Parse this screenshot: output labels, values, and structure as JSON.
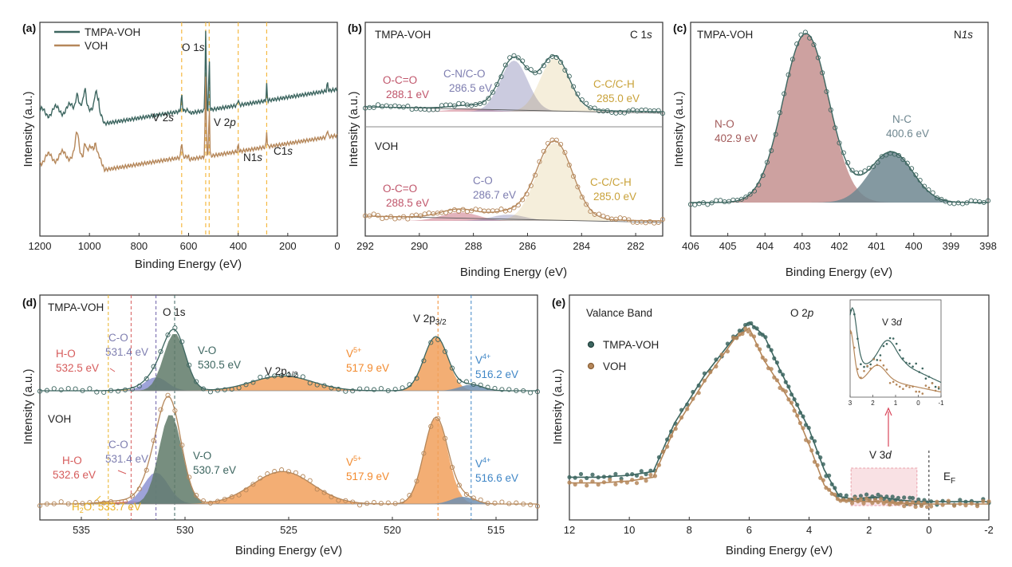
{
  "colors": {
    "tmpa": "#3d6660",
    "voh": "#b5875a",
    "vline": "#f5b942",
    "oco_txt": "#c0566b",
    "cn_txt": "#7e7eb0",
    "cc_txt": "#c9a23a",
    "no_fill": "#c4908f",
    "nc_fill": "#6f8790",
    "v5_fill": "#f1a05c",
    "v4_fill": "#6e8fb2",
    "v4_txt": "#3f86c6",
    "vo_fill": "#5f7a68",
    "c_o_fill": "#8d93d2",
    "ho_txt": "#d65b5b",
    "h2o_txt": "#e9b226",
    "v5_txt": "#f28a2e",
    "box_fill": "#f7d4d8"
  },
  "chart_data": [
    {
      "id": "a",
      "type": "line",
      "panel_label": "(a)",
      "xlabel": "Binding Energy (eV)",
      "ylabel": "Intensity (a.u.)",
      "xlim": [
        1200,
        0
      ],
      "xticks": [
        1200,
        1000,
        800,
        600,
        400,
        200,
        0
      ],
      "legend_position": "top-left",
      "series": [
        {
          "name": "TMPA-VOH",
          "key": "tmpa"
        },
        {
          "name": "VOH",
          "key": "voh"
        }
      ],
      "annotations": [
        {
          "id": "v2s",
          "text": "V 2",
          "italic": "s",
          "x": 628
        },
        {
          "id": "o1s",
          "text": "O 1",
          "italic": "s",
          "x": 531
        },
        {
          "id": "v2p",
          "text": "V 2",
          "italic": "p",
          "x": 517
        },
        {
          "id": "n1s",
          "text": "N1",
          "italic": "s",
          "x": 400
        },
        {
          "id": "c1s",
          "text": "C1",
          "italic": "s",
          "x": 285
        }
      ],
      "reference_lines": [
        628,
        531,
        517,
        400,
        285
      ]
    },
    {
      "id": "b",
      "type": "line",
      "panel_label": "(b)",
      "xlabel": "Binding Energy (eV)",
      "ylabel": "Intensity (a.u.)",
      "xlim": [
        292,
        281
      ],
      "xticks": [
        292,
        290,
        288,
        286,
        284,
        282
      ],
      "region_label": "C 1",
      "region_italic": "s",
      "subpanels": [
        {
          "name": "TMPA-VOH",
          "peaks": [
            {
              "label": "O-C=O",
              "value": "288.1 eV",
              "center": 288.1,
              "height": 0.05,
              "fwhm": 1.6
            },
            {
              "label": "C-N/C-O",
              "value": "286.5 eV",
              "center": 286.5,
              "height": 0.78,
              "fwhm": 1.2
            },
            {
              "label": "C-C/C-H",
              "value": "285.0 eV",
              "center": 285.0,
              "height": 0.82,
              "fwhm": 1.25
            }
          ]
        },
        {
          "name": "VOH",
          "peaks": [
            {
              "label": "O-C=O",
              "value": "288.5 eV",
              "center": 288.5,
              "height": 0.11,
              "fwhm": 1.6
            },
            {
              "label": "C-O",
              "value": "286.7 eV",
              "center": 286.7,
              "height": 0.08,
              "fwhm": 1.5
            },
            {
              "label": "C-C/C-H",
              "value": "285.0 eV",
              "center": 285.0,
              "height": 1.0,
              "fwhm": 1.55
            }
          ]
        }
      ]
    },
    {
      "id": "c",
      "type": "line",
      "panel_label": "(c)",
      "name": "TMPA-VOH",
      "region_label": "N",
      "region_italic": "1s",
      "xlabel": "Binding Energy (eV)",
      "ylabel": "Intensity (a.u.)",
      "xlim": [
        406,
        398
      ],
      "xticks": [
        406,
        405,
        404,
        403,
        402,
        401,
        400,
        399,
        398
      ],
      "peaks": [
        {
          "label": "N-O",
          "value": "402.9 eV",
          "center": 402.9,
          "height": 1.0,
          "fwhm": 1.45
        },
        {
          "label": "N-C",
          "value": "400.6 eV",
          "center": 400.6,
          "height": 0.3,
          "fwhm": 1.35
        }
      ]
    },
    {
      "id": "d",
      "type": "line",
      "panel_label": "(d)",
      "xlabel": "Binding Energy (eV)",
      "ylabel": "Intensity (a.u.)",
      "xlim": [
        537,
        513
      ],
      "xticks": [
        535,
        530,
        525,
        520,
        515
      ],
      "headers": {
        "o1s": "O 1s",
        "v2p12": "V 2p",
        "v2p12_sub": "1/2",
        "v2p32": "V 2p",
        "v2p32_sub": "3/2"
      },
      "reference_lines": [
        533.7,
        532.6,
        531.4,
        530.5,
        517.8,
        516.2
      ],
      "subpanels": [
        {
          "name": "TMPA-VOH",
          "peaks": [
            {
              "label": "H-O",
              "value": "532.5 eV",
              "center": 532.5,
              "height": 0.02,
              "fwhm": 1.6,
              "fill": "h2o"
            },
            {
              "label": "C-O",
              "value": "531.4 eV",
              "center": 531.4,
              "height": 0.2,
              "fwhm": 1.3,
              "fill": "c_o"
            },
            {
              "label": "V-O",
              "value": "530.5 eV",
              "center": 530.5,
              "height": 0.85,
              "fwhm": 1.25,
              "fill": "vo"
            },
            {
              "label": "V 2p1/2",
              "value": "",
              "center": 525.3,
              "height": 0.22,
              "fwhm": 3.4,
              "fill": "v5"
            },
            {
              "label": "V5+",
              "value": "517.9 eV",
              "center": 517.9,
              "height": 0.8,
              "fwhm": 1.35,
              "fill": "v5"
            },
            {
              "label": "V4+",
              "value": "516.2 eV",
              "center": 516.2,
              "height": 0.09,
              "fwhm": 1.3,
              "fill": "v4"
            }
          ]
        },
        {
          "name": "VOH",
          "peaks": [
            {
              "label": "H2O",
              "value": "533.7 eV",
              "center": 533.7,
              "height": 0.02,
              "fwhm": 1.6,
              "fill": "h2o"
            },
            {
              "label": "H-O",
              "value": "532.6 eV",
              "center": 532.6,
              "height": 0.03,
              "fwhm": 1.6,
              "fill": "ho"
            },
            {
              "label": "C-O",
              "value": "531.4 eV",
              "center": 531.4,
              "height": 0.35,
              "fwhm": 1.4,
              "fill": "c_o"
            },
            {
              "label": "V-O",
              "value": "530.7 eV",
              "center": 530.7,
              "height": 1.0,
              "fwhm": 1.3,
              "fill": "vo"
            },
            {
              "label": "V 2p1/2",
              "value": "",
              "center": 525.3,
              "height": 0.36,
              "fwhm": 3.4,
              "fill": "v5"
            },
            {
              "label": "V5+",
              "value": "517.9 eV",
              "center": 517.9,
              "height": 0.96,
              "fwhm": 1.35,
              "fill": "v5"
            },
            {
              "label": "V4+",
              "value": "516.6 eV",
              "center": 516.6,
              "height": 0.08,
              "fwhm": 1.3,
              "fill": "v4"
            }
          ]
        }
      ]
    },
    {
      "id": "e",
      "type": "scatter",
      "panel_label": "(e)",
      "title": "Valance Band",
      "xlabel": "Binding Energy (eV)",
      "ylabel": "Intensity (a.u.)",
      "xlim": [
        12,
        -2
      ],
      "xticks": [
        12,
        10,
        8,
        6,
        4,
        2,
        0,
        -2
      ],
      "annotations": {
        "o2p": "O 2",
        "o2p_italic": "p",
        "v3d": "V 3",
        "v3d_italic": "d",
        "ef": "E",
        "ef_sub": "F"
      },
      "fermi_level": 0,
      "highlight_range": [
        2.6,
        0.4
      ],
      "legend_position": "top-left",
      "series": [
        {
          "name": "TMPA-VOH",
          "key": "tmpa",
          "x": [
            12,
            11,
            10,
            9.2,
            8.5,
            7.5,
            6.5,
            6.0,
            5.5,
            5.0,
            4.5,
            4.0,
            3.5,
            3.0,
            2.5,
            2.0,
            1.5,
            1.0,
            0.5,
            0,
            -1,
            -2
          ],
          "y": [
            0.14,
            0.14,
            0.15,
            0.17,
            0.42,
            0.67,
            0.87,
            0.95,
            0.88,
            0.71,
            0.55,
            0.39,
            0.18,
            0.04,
            0.025,
            0.035,
            0.033,
            0.02,
            0.015,
            0.012,
            0.012,
            0.012
          ]
        },
        {
          "name": "VOH",
          "key": "voh",
          "x": [
            12,
            11,
            10,
            9.2,
            8.5,
            7.5,
            6.5,
            6.0,
            5.5,
            5.0,
            4.5,
            4.0,
            3.5,
            3.0,
            2.5,
            2.0,
            1.5,
            1.0,
            0.5,
            0,
            -1,
            -2
          ],
          "y": [
            0.11,
            0.11,
            0.12,
            0.14,
            0.39,
            0.64,
            0.86,
            0.92,
            0.75,
            0.63,
            0.5,
            0.31,
            0.1,
            0.02,
            0.015,
            0.012,
            0.012,
            0.005,
            0.002,
            0.0,
            0.0,
            0.0
          ]
        }
      ],
      "inset": {
        "xlim": [
          3,
          -1
        ],
        "xticks": [
          3,
          2,
          1,
          0,
          -1
        ],
        "label": "V 3",
        "label_italic": "d"
      }
    }
  ]
}
